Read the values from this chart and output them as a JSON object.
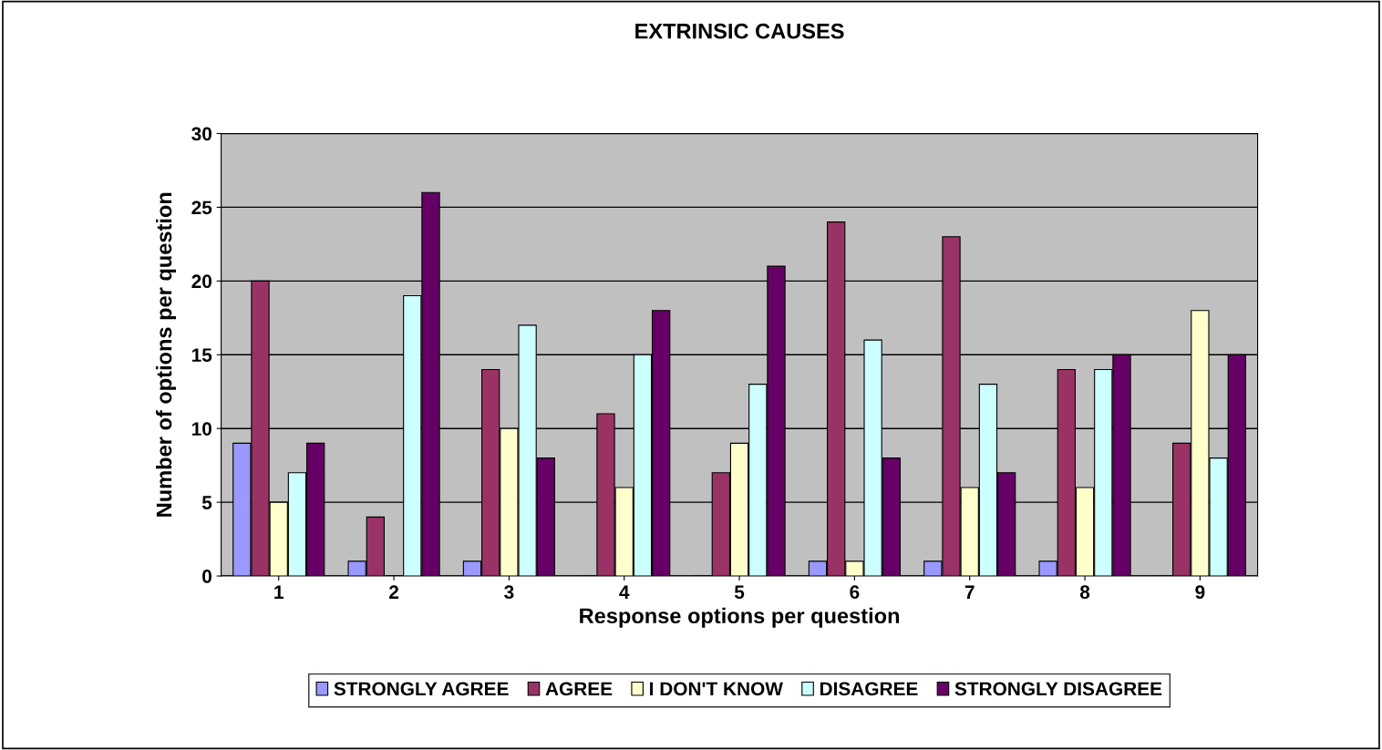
{
  "chart_data": {
    "type": "bar",
    "title": "EXTRINSIC CAUSES",
    "xlabel": "Response options per question",
    "ylabel": "Number of options per question",
    "categories": [
      "1",
      "2",
      "3",
      "4",
      "5",
      "6",
      "7",
      "8",
      "9"
    ],
    "series": [
      {
        "name": "STRONGLY AGREE",
        "color": "#9999ff",
        "values": [
          9,
          1,
          1,
          0,
          0,
          1,
          1,
          1,
          0
        ]
      },
      {
        "name": "AGREE",
        "color": "#993366",
        "values": [
          20,
          4,
          14,
          11,
          7,
          24,
          23,
          14,
          9
        ]
      },
      {
        "name": "I DON'T KNOW",
        "color": "#ffffcc",
        "values": [
          5,
          0,
          10,
          6,
          9,
          1,
          6,
          6,
          18
        ]
      },
      {
        "name": "DISAGREE",
        "color": "#ccffff",
        "values": [
          7,
          19,
          17,
          15,
          13,
          16,
          13,
          14,
          8
        ]
      },
      {
        "name": "STRONGLY DISAGREE",
        "color": "#660066",
        "values": [
          9,
          26,
          8,
          18,
          21,
          8,
          7,
          15,
          15
        ]
      }
    ],
    "ylim": [
      0,
      30
    ],
    "yticks": [
      0,
      5,
      10,
      15,
      20,
      25,
      30
    ],
    "grid": "y",
    "legend": "bottom"
  }
}
